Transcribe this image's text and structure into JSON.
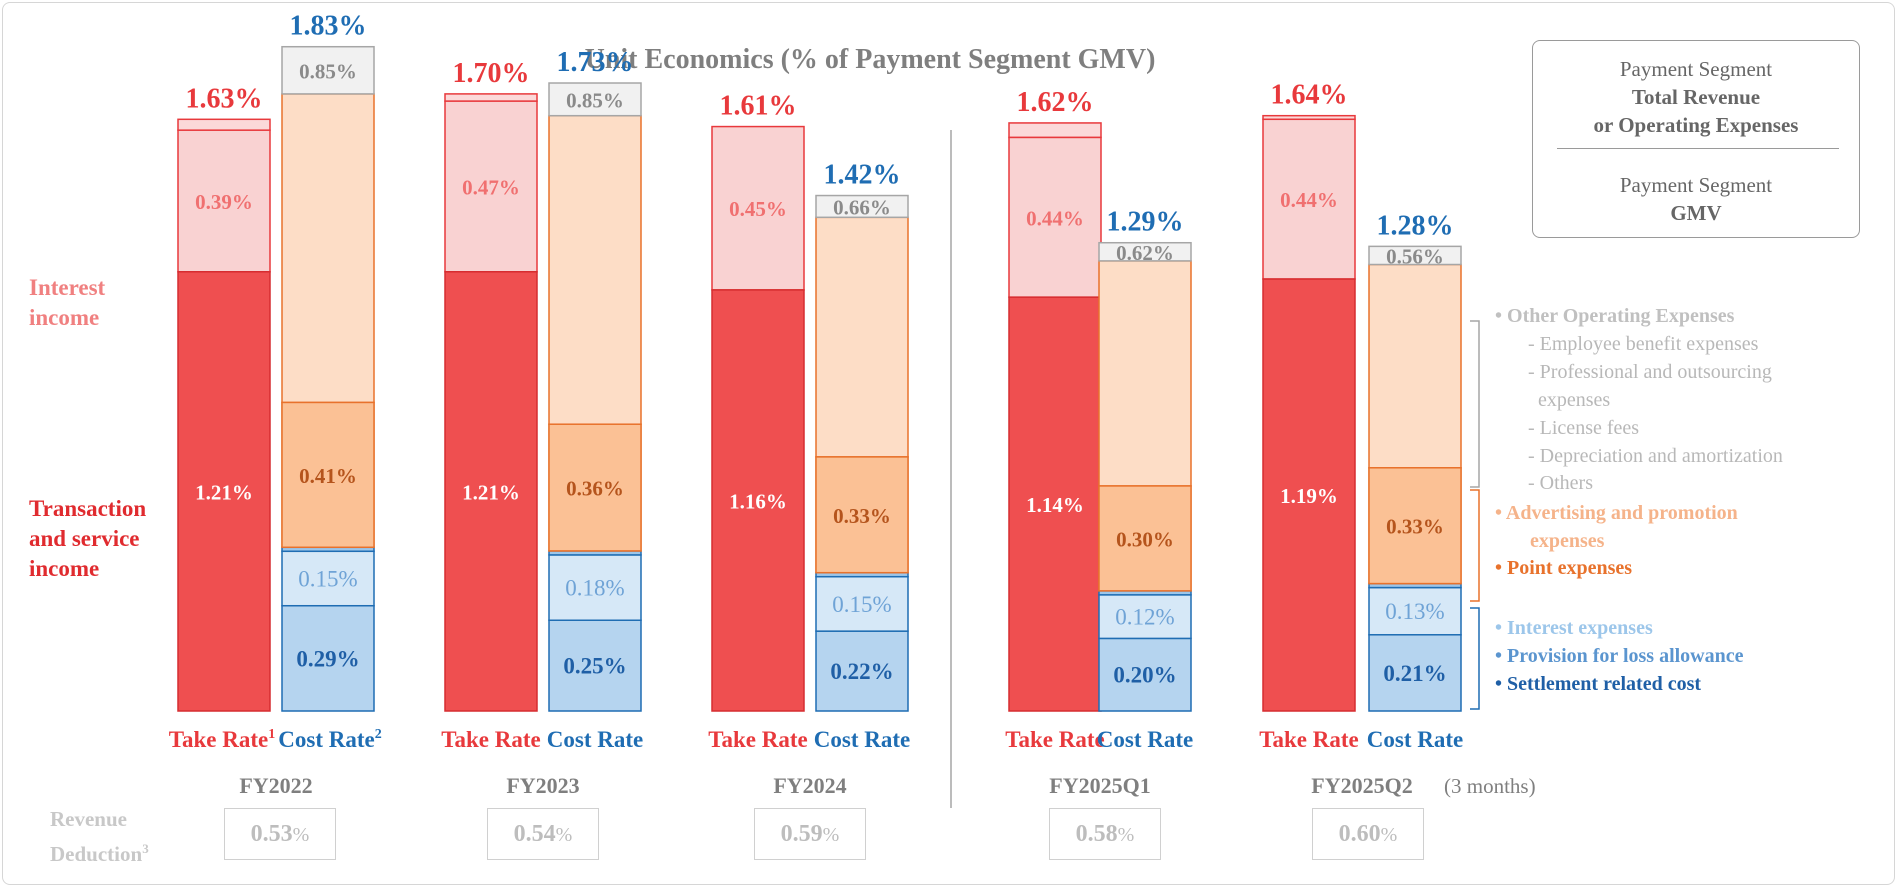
{
  "title": "Unit Economics (% of Payment Segment GMV)",
  "legend_box": {
    "line1": "Payment Segment",
    "line2": "Total Revenue",
    "line3": "or Operating Expenses",
    "line4": "Payment Segment",
    "line5": "GMV"
  },
  "side_labels": {
    "interest_income": [
      "Interest",
      "income"
    ],
    "transaction_income": [
      "Transaction",
      "and service",
      "income"
    ]
  },
  "legend": {
    "other_opex": "Other Operating Expenses",
    "other_items": [
      "- Employee benefit expenses",
      "- Professional and outsourcing",
      "  expenses",
      "- License fees",
      "- Depreciation and amortization",
      "- Others"
    ],
    "advertising": [
      "Advertising and promotion",
      "expenses"
    ],
    "point": "Point expenses",
    "interest_exp": "Interest expenses",
    "provision": "Provision for loss allowance",
    "settlement": "Settlement related cost"
  },
  "revenue_deduction": {
    "label": [
      "Revenue",
      "Deduction"
    ],
    "sup": "3",
    "values": [
      "0.53",
      "0.54",
      "0.59",
      "0.58",
      "0.60"
    ],
    "unit": "%"
  },
  "footnote_suffix": "(3 months)",
  "colors": {
    "take_total": "#e8393c",
    "cost_total": "#1f6db3",
    "transaction": "#ef4f50",
    "interest_income": "#f9d2d2",
    "other_fee_top": "#fbd9d9",
    "other_opex": "#f1f1f1",
    "advertising_light": "#fdddc6",
    "point": "#fbc195",
    "interest_exp": "#d6e8f7",
    "settlement": "#b5d4ef",
    "grey_text": "#7f7f7f"
  },
  "chart_data": {
    "type": "bar",
    "stacked": true,
    "periods": [
      "FY2022",
      "FY2023",
      "FY2024",
      "FY2025Q1",
      "FY2025Q2"
    ],
    "take_rate_label": "Take Rate",
    "cost_rate_label": "Cost Rate",
    "take_rate_sup": "1",
    "cost_rate_sup": "2",
    "take_rate": {
      "total": [
        "1.63%",
        "1.70%",
        "1.61%",
        "1.62%",
        "1.64%"
      ],
      "totals": [
        1.63,
        1.7,
        1.61,
        1.62,
        1.64
      ],
      "series": [
        {
          "values": [
            1.21,
            1.21,
            1.16,
            1.14,
            1.19
          ],
          "labels": [
            "1.21%",
            "1.21%",
            "1.16%",
            "1.14%",
            "1.19%"
          ]
        },
        {
          "values": [
            0.39,
            0.47,
            0.45,
            0.44,
            0.44
          ],
          "labels": [
            "0.39%",
            "0.47%",
            "0.45%",
            "0.44%",
            "0.44%"
          ]
        }
      ]
    },
    "cost_rate": {
      "total": [
        "1.83%",
        "1.73%",
        "1.42%",
        "1.29%",
        "1.28%"
      ],
      "totals": [
        1.83,
        1.73,
        1.42,
        1.29,
        1.28
      ],
      "series": [
        {
          "values": [
            0.29,
            0.25,
            0.22,
            0.2,
            0.21
          ],
          "labels": [
            "0.29%",
            "0.25%",
            "0.22%",
            "0.20%",
            "0.21%"
          ]
        },
        {
          "values": [
            0.15,
            0.18,
            0.15,
            0.12,
            0.13
          ],
          "labels": [
            "0.15%",
            "0.18%",
            "0.15%",
            "0.12%",
            "0.13%"
          ]
        },
        {
          "values": [
            0.41,
            0.36,
            0.33,
            0.3,
            0.33
          ],
          "labels": [
            "0.41%",
            "0.36%",
            "0.33%",
            "0.30%",
            "0.33%"
          ]
        },
        {
          "values": [
            0.85,
            0.85,
            0.66,
            0.62,
            0.56
          ],
          "labels": [
            "0.85%",
            "0.85%",
            "0.66%",
            "0.62%",
            "0.56%"
          ]
        }
      ]
    }
  }
}
